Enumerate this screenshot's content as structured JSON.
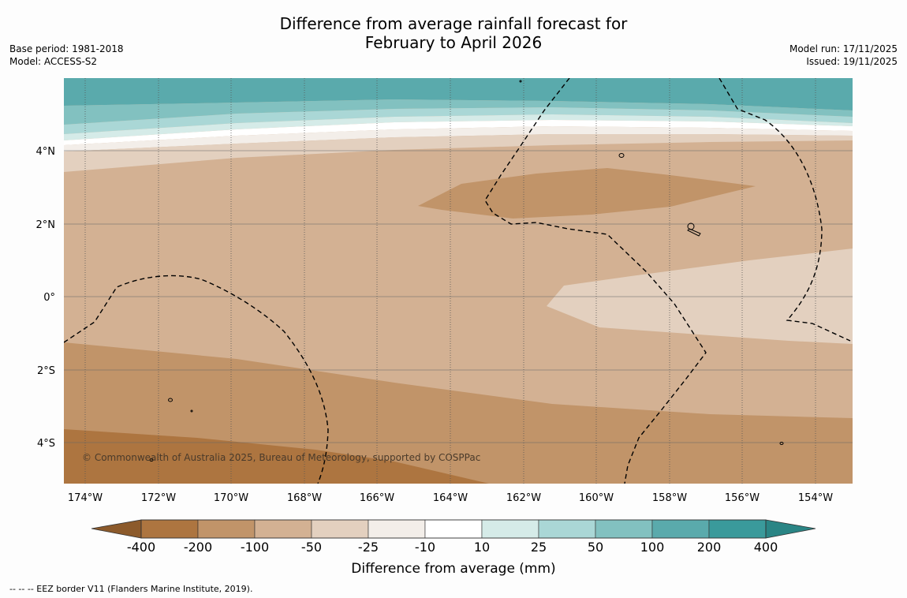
{
  "title": {
    "line1": "Difference from average rainfall forecast for",
    "line2": "February to April 2026"
  },
  "meta_left": {
    "base_period": "Base period: 1981-2018",
    "model": "Model: ACCESS-S2"
  },
  "meta_right": {
    "model_run": "Model run: 17/11/2025",
    "issued": "Issued: 19/11/2025"
  },
  "map": {
    "lat_labels": [
      "4°N",
      "2°N",
      "0°",
      "2°S",
      "4°S"
    ],
    "lon_labels": [
      "174°W",
      "172°W",
      "170°W",
      "168°W",
      "166°W",
      "164°W",
      "162°W",
      "160°W",
      "158°W",
      "156°W",
      "154°W"
    ],
    "copyright": "© Commonwealth of Australia 2025, Bureau of Meteorology, supported by COSPPac",
    "lon_range": [
      -174.6,
      -153.0
    ],
    "lat_range": [
      -5.1,
      5.9
    ]
  },
  "colorbar": {
    "ticks": [
      "-400",
      "-200",
      "-100",
      "-50",
      "-25",
      "-10",
      "10",
      "25",
      "50",
      "100",
      "200",
      "400"
    ],
    "colors": [
      "#8c5a2b",
      "#ad7540",
      "#c19469",
      "#d3b193",
      "#e3d0bf",
      "#f3eee9",
      "#ffffff",
      "#d5ebe8",
      "#aad7d6",
      "#82c1c0",
      "#5aaaac",
      "#3a9a9b",
      "#2a8585"
    ],
    "label": "Difference from average (mm)"
  },
  "legend_note": "--  --  -- EEZ border V11 (Flanders Marine Institute, 2019)."
}
